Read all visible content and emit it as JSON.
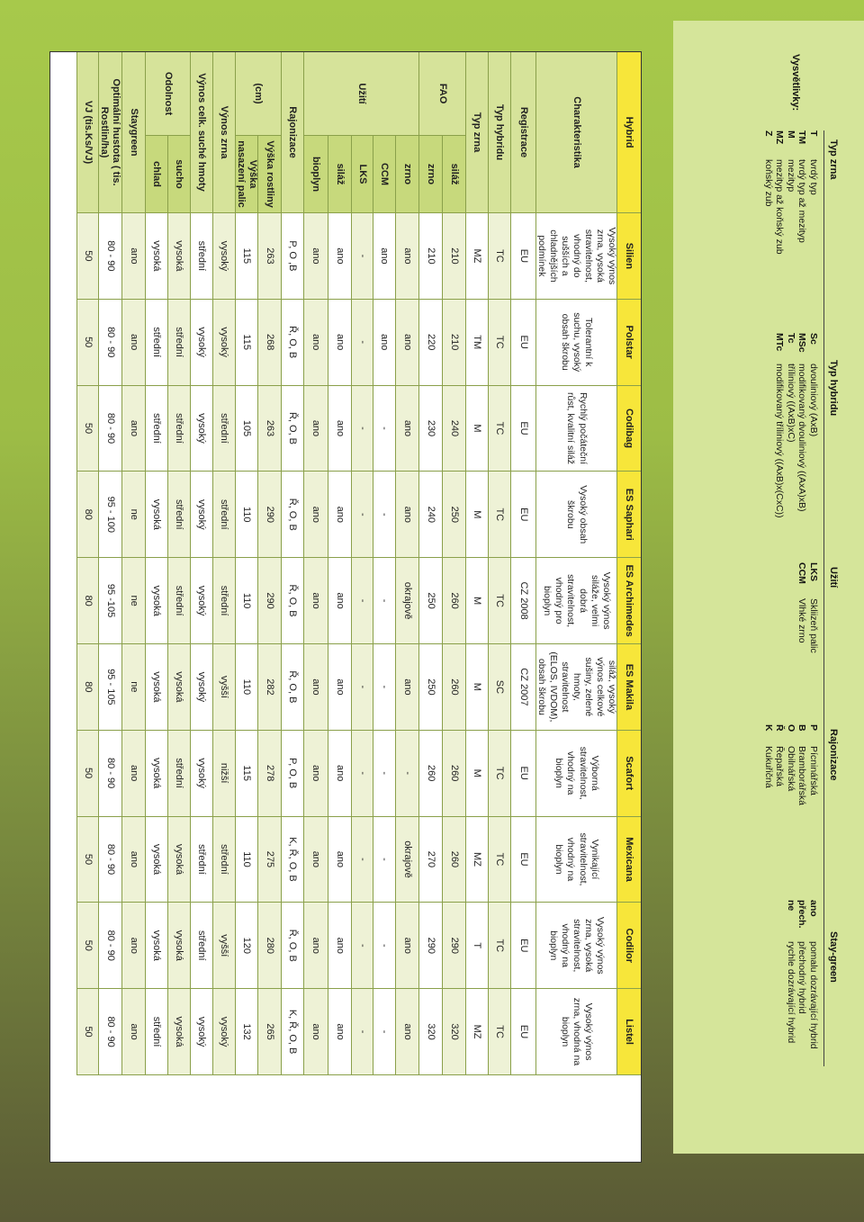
{
  "table": {
    "columns": [
      "Hybrid",
      "Silien",
      "Polstar",
      "Codibag",
      "ES Saphari",
      "ES Archimedes",
      "ES Makila",
      "Scafort",
      "Mexicana",
      "Codilor",
      "Listel"
    ],
    "characteristics_label": "Charakteristika",
    "descriptions": [
      "Vysoký výnos zrna, vysoká stravitelnost, vhodný do sušších a chladnějších podmínek",
      "Tolerantní k suchu, vysoký obsah škrobu",
      "Rychlý počáteční růst, kvalitní siláž",
      "Vysoký obsah škrobu",
      "Vysoký výnos siláže, velmi dobrá stravitelnost, vhodný pro bioplyn",
      "Určena hlavně na siláž, vysoký výnos celkové sušiny, zelené hmoty, stravitelnost (ELOS, IVDOM), obsah škrobu středně vysoký",
      "Výborná stravitelnost, vhodný na bioplyn",
      "Vynikající stravitelnost, vhodný na bioplyn",
      "Vysoký výnos zrna, vysoká stravitelnost, vhodný na bioplyn",
      "Vysoký výnos zrna, vhodná na bioplyn"
    ],
    "rows": [
      {
        "group": "",
        "label": "Registrace",
        "values": [
          "EU",
          "EU",
          "EU",
          "EU",
          "CZ 2008",
          "CZ 2007",
          "EU",
          "EU",
          "EU",
          "EU"
        ]
      },
      {
        "group": "",
        "label": "Typ hybridu",
        "values": [
          "TC",
          "TC",
          "TC",
          "TC",
          "TC",
          "SC",
          "TC",
          "TC",
          "TC",
          "TC"
        ]
      },
      {
        "group": "",
        "label": "Typ zrna",
        "values": [
          "MZ",
          "TM",
          "M",
          "M",
          "M",
          "M",
          "M",
          "MZ",
          "T",
          "MZ"
        ]
      },
      {
        "group": "FAO",
        "label": "siláž",
        "values": [
          "210",
          "210",
          "240",
          "250",
          "260",
          "260",
          "260",
          "260",
          "290",
          "320"
        ]
      },
      {
        "group": "FAO",
        "label": "zrno",
        "values": [
          "210",
          "220",
          "230",
          "240",
          "250",
          "250",
          "260",
          "270",
          "290",
          "320"
        ]
      },
      {
        "group": "Užití",
        "label": "zrno",
        "values": [
          "ano",
          "ano",
          "ano",
          "ano",
          "okrajově",
          "ano",
          "-",
          "okrajově",
          "ano",
          "ano"
        ]
      },
      {
        "group": "Užití",
        "label": "CCM",
        "values": [
          "ano",
          "ano",
          "-",
          "-",
          "-",
          "-",
          "-",
          "-",
          "-",
          "-"
        ]
      },
      {
        "group": "Užití",
        "label": "LKS",
        "values": [
          "-",
          "-",
          "-",
          "-",
          "-",
          "-",
          "-",
          "-",
          "-",
          "-"
        ]
      },
      {
        "group": "Užití",
        "label": "siláž",
        "values": [
          "ano",
          "ano",
          "ano",
          "ano",
          "ano",
          "ano",
          "ano",
          "ano",
          "ano",
          "ano"
        ]
      },
      {
        "group": "Užití",
        "label": "bioplyn",
        "values": [
          "ano",
          "ano",
          "ano",
          "ano",
          "ano",
          "ano",
          "ano",
          "ano",
          "ano",
          "ano"
        ]
      },
      {
        "group": "",
        "label": "Rajonizace",
        "values": [
          "P, O ,B",
          "Ř, O, B",
          "Ř, O, B",
          "Ř, O, B",
          "Ř, O, B",
          "Ř, O, B",
          "P, O, B",
          "K, Ř, O, B",
          "Ř, O, B",
          "K, Ř, O, B"
        ]
      },
      {
        "group": "(cm)",
        "label": "Výška rostliny",
        "values": [
          "263",
          "268",
          "263",
          "290",
          "290",
          "282",
          "278",
          "275",
          "280",
          "265"
        ]
      },
      {
        "group": "(cm)",
        "label": "Výška nasazení palic",
        "values": [
          "115",
          "115",
          "105",
          "110",
          "110",
          "110",
          "115",
          "110",
          "120",
          "132"
        ]
      },
      {
        "group": "",
        "label": "Výnos zrna",
        "values": [
          "vysoký",
          "vysoký",
          "střední",
          "střední",
          "střední",
          "vyšší",
          "nižší",
          "střední",
          "vyšší",
          "vysoký"
        ]
      },
      {
        "group": "",
        "label": "Výnos celk. suché hmoty",
        "values": [
          "střední",
          "vysoký",
          "vysoký",
          "vysoký",
          "vysoký",
          "vysoký",
          "vysoký",
          "střední",
          "střední",
          "vysoký"
        ]
      },
      {
        "group": "Odolnost",
        "label": "sucho",
        "values": [
          "vysoká",
          "střední",
          "střední",
          "střední",
          "střední",
          "vysoká",
          "střední",
          "vysoká",
          "vysoká",
          "vysoká"
        ]
      },
      {
        "group": "Odolnost",
        "label": "chlad",
        "values": [
          "vysoká",
          "střední",
          "střední",
          "vysoká",
          "vysoká",
          "vysoká",
          "vysoká",
          "vysoká",
          "vysoká",
          "střední"
        ]
      },
      {
        "group": "",
        "label": "Staygreen",
        "values": [
          "ano",
          "ano",
          "ano",
          "ne",
          "ne",
          "ne",
          "ano",
          "ano",
          "ano",
          "ano"
        ]
      },
      {
        "group": "",
        "label": "Optimální hustota ( tis. Rostlin/ha)",
        "values": [
          "80 - 90",
          "80 - 90",
          "80 - 90",
          "95 - 100",
          "95 -105",
          "95 - 105",
          "80 - 90",
          "80 - 90",
          "80 - 90",
          "80 - 90"
        ]
      },
      {
        "group": "",
        "label": "VJ (tis.Ks/VJ)",
        "values": [
          "50",
          "50",
          "50",
          "80",
          "80",
          "80",
          "50",
          "50",
          "50",
          "50"
        ]
      }
    ]
  },
  "legend": {
    "title": "Vysvětlivky:",
    "typ_zrna": {
      "heading": "Typ zrna",
      "items": [
        [
          "T",
          "tvrdý typ"
        ],
        [
          "TM",
          "tvrdý typ až mezityp"
        ],
        [
          "M",
          "mezityp"
        ],
        [
          "MZ",
          "mezityp až koňský zub"
        ],
        [
          "Z",
          "koňský zub"
        ]
      ]
    },
    "typ_hybridu": {
      "heading": "Typ hybridu",
      "items": [
        [
          "Sc",
          "dvouliniový (AxB)"
        ],
        [
          "MSc",
          "modifikovaný dvouliniový ((AxA)xB)"
        ],
        [
          "Tc",
          "tříliniový ((AxB)xC)"
        ],
        [
          "MTc",
          "modifikovaný tříliniový ((AxB)x(CxC))"
        ]
      ]
    },
    "uziti": {
      "heading": "Užití",
      "items": [
        [
          "LKS",
          "Skliizeň palic"
        ],
        [
          "CCM",
          "Vlhké zrno"
        ]
      ]
    },
    "rajonizace": {
      "heading": "Rajonizace",
      "items": [
        [
          "P",
          "Pícninářská"
        ],
        [
          "B",
          "Bramborářská"
        ],
        [
          "O",
          "Obilnářská"
        ],
        [
          "Ř",
          "Řepařská"
        ],
        [
          "K",
          "Kukuřičná"
        ]
      ]
    },
    "stay_green": {
      "heading": "Stay-green",
      "items": [
        [
          "ano",
          "pomalu dozrávající hybrid"
        ],
        [
          "přech.",
          "přechodný hybrid"
        ],
        [
          "ne",
          "rychle dozrávající hybrid"
        ]
      ]
    }
  },
  "colors": {
    "header_yellow": "#f7e63a",
    "label_green": "#d6e39a",
    "legend_bg": "#d5e59a"
  }
}
